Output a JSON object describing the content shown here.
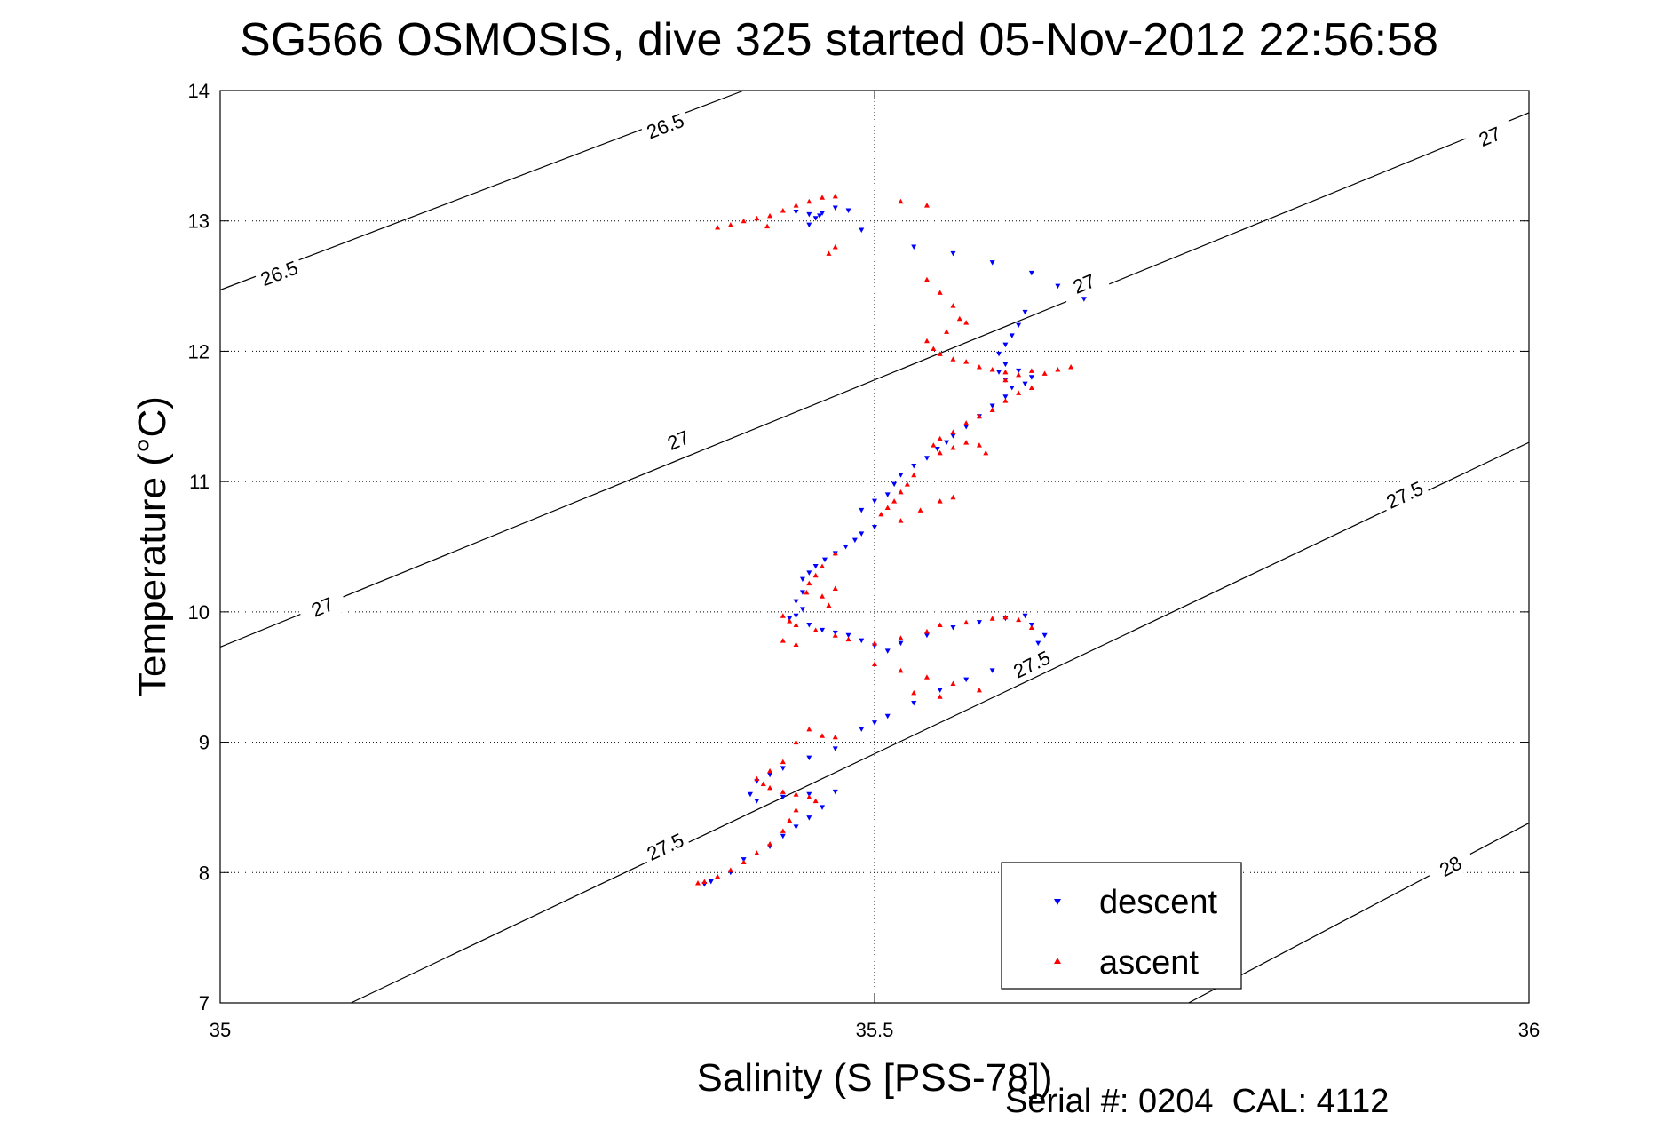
{
  "chart_data": {
    "type": "scatter",
    "title": "SG566 OSMOSIS, dive 325 started 05-Nov-2012 22:56:58",
    "xlabel": "Salinity (S [PSS-78])",
    "ylabel": "Temperature (°C)",
    "xlim": [
      35,
      36
    ],
    "ylim": [
      7,
      14
    ],
    "x_ticks": [
      35,
      35.5,
      36
    ],
    "y_ticks": [
      7,
      8,
      9,
      10,
      11,
      12,
      13,
      14
    ],
    "x_tick_labels": [
      "35",
      "35.5",
      "36"
    ],
    "y_tick_labels": [
      "7",
      "8",
      "9",
      "10",
      "11",
      "12",
      "13",
      "14"
    ],
    "grid": true,
    "legend_position": "bottom-right",
    "footer": "Serial #: 0204  CAL: 4112",
    "contours": [
      {
        "label": "26.5",
        "points": [
          [
            35,
            12.47
          ],
          [
            35.4,
            14.0
          ]
        ],
        "label_at": [
          [
            35.045,
            12.6
          ],
          [
            35.34,
            13.73
          ]
        ]
      },
      {
        "label": "27",
        "points": [
          [
            35,
            9.73
          ],
          [
            36,
            13.83
          ]
        ],
        "label_at": [
          [
            35.078,
            10.04
          ],
          [
            35.35,
            11.32
          ],
          [
            35.66,
            12.52
          ],
          [
            35.97,
            13.65
          ]
        ]
      },
      {
        "label": "27.5",
        "points": [
          [
            35.1,
            7.0
          ],
          [
            36,
            11.3
          ]
        ],
        "label_at": [
          [
            35.34,
            8.2
          ],
          [
            35.62,
            9.6
          ],
          [
            35.905,
            10.9
          ]
        ]
      },
      {
        "label": "28",
        "points": [
          [
            35.74,
            7.0
          ],
          [
            36,
            8.38
          ]
        ],
        "label_at": [
          [
            35.94,
            8.05
          ]
        ]
      }
    ],
    "series": [
      {
        "name": "descent",
        "color": "#0000ff",
        "marker": "triangle-down",
        "points": [
          [
            35.44,
            13.07
          ],
          [
            35.45,
            13.05
          ],
          [
            35.455,
            13.02
          ],
          [
            35.46,
            13.06
          ],
          [
            35.47,
            13.1
          ],
          [
            35.48,
            13.08
          ],
          [
            35.49,
            12.93
          ],
          [
            35.45,
            12.97
          ],
          [
            35.458,
            13.04
          ],
          [
            35.53,
            12.8
          ],
          [
            35.56,
            12.75
          ],
          [
            35.59,
            12.68
          ],
          [
            35.62,
            12.6
          ],
          [
            35.64,
            12.5
          ],
          [
            35.66,
            12.4
          ],
          [
            35.615,
            12.3
          ],
          [
            35.61,
            12.2
          ],
          [
            35.605,
            12.12
          ],
          [
            35.6,
            12.05
          ],
          [
            35.595,
            11.98
          ],
          [
            35.6,
            11.9
          ],
          [
            35.595,
            11.84
          ],
          [
            35.6,
            11.78
          ],
          [
            35.605,
            11.72
          ],
          [
            35.61,
            11.85
          ],
          [
            35.62,
            11.8
          ],
          [
            35.615,
            11.75
          ],
          [
            35.6,
            11.65
          ],
          [
            35.59,
            11.58
          ],
          [
            35.58,
            11.5
          ],
          [
            35.57,
            11.42
          ],
          [
            35.56,
            11.35
          ],
          [
            35.555,
            11.3
          ],
          [
            35.548,
            11.25
          ],
          [
            35.54,
            11.18
          ],
          [
            35.53,
            11.12
          ],
          [
            35.52,
            11.05
          ],
          [
            35.515,
            10.98
          ],
          [
            35.51,
            10.9
          ],
          [
            35.5,
            10.85
          ],
          [
            35.49,
            10.78
          ],
          [
            35.5,
            10.65
          ],
          [
            35.49,
            10.6
          ],
          [
            35.485,
            10.55
          ],
          [
            35.478,
            10.5
          ],
          [
            35.47,
            10.45
          ],
          [
            35.462,
            10.4
          ],
          [
            35.455,
            10.35
          ],
          [
            35.45,
            10.3
          ],
          [
            35.445,
            10.25
          ],
          [
            35.445,
            10.15
          ],
          [
            35.44,
            10.08
          ],
          [
            35.445,
            10.02
          ],
          [
            35.44,
            9.97
          ],
          [
            35.435,
            9.95
          ],
          [
            35.45,
            9.9
          ],
          [
            35.46,
            9.86
          ],
          [
            35.47,
            9.84
          ],
          [
            35.48,
            9.82
          ],
          [
            35.49,
            9.78
          ],
          [
            35.5,
            9.74
          ],
          [
            35.51,
            9.7
          ],
          [
            35.52,
            9.76
          ],
          [
            35.54,
            9.82
          ],
          [
            35.56,
            9.88
          ],
          [
            35.58,
            9.92
          ],
          [
            35.6,
            9.95
          ],
          [
            35.615,
            9.97
          ],
          [
            35.62,
            9.9
          ],
          [
            35.63,
            9.82
          ],
          [
            35.625,
            9.76
          ],
          [
            35.59,
            9.55
          ],
          [
            35.57,
            9.48
          ],
          [
            35.55,
            9.4
          ],
          [
            35.53,
            9.3
          ],
          [
            35.51,
            9.2
          ],
          [
            35.5,
            9.15
          ],
          [
            35.49,
            9.1
          ],
          [
            35.47,
            8.95
          ],
          [
            35.45,
            8.88
          ],
          [
            35.43,
            8.8
          ],
          [
            35.42,
            8.75
          ],
          [
            35.41,
            8.7
          ],
          [
            35.405,
            8.6
          ],
          [
            35.41,
            8.55
          ],
          [
            35.43,
            8.58
          ],
          [
            35.45,
            8.6
          ],
          [
            35.47,
            8.62
          ],
          [
            35.46,
            8.5
          ],
          [
            35.45,
            8.42
          ],
          [
            35.44,
            8.35
          ],
          [
            35.43,
            8.28
          ],
          [
            35.42,
            8.2
          ],
          [
            35.4,
            8.1
          ],
          [
            35.39,
            8.0
          ],
          [
            35.375,
            7.93
          ],
          [
            35.37,
            7.91
          ]
        ]
      },
      {
        "name": "ascent",
        "color": "#ff0000",
        "marker": "triangle-up",
        "points": [
          [
            35.38,
            12.95
          ],
          [
            35.39,
            12.97
          ],
          [
            35.4,
            13.0
          ],
          [
            35.41,
            13.02
          ],
          [
            35.42,
            13.04
          ],
          [
            35.43,
            13.08
          ],
          [
            35.44,
            13.12
          ],
          [
            35.45,
            13.15
          ],
          [
            35.46,
            13.18
          ],
          [
            35.47,
            13.19
          ],
          [
            35.418,
            12.96
          ],
          [
            35.47,
            12.8
          ],
          [
            35.465,
            12.75
          ],
          [
            35.52,
            13.15
          ],
          [
            35.54,
            13.12
          ],
          [
            35.54,
            12.55
          ],
          [
            35.55,
            12.45
          ],
          [
            35.56,
            12.35
          ],
          [
            35.565,
            12.25
          ],
          [
            35.57,
            12.22
          ],
          [
            35.555,
            12.15
          ],
          [
            35.54,
            12.08
          ],
          [
            35.545,
            12.02
          ],
          [
            35.55,
            11.98
          ],
          [
            35.56,
            11.94
          ],
          [
            35.57,
            11.92
          ],
          [
            35.58,
            11.88
          ],
          [
            35.59,
            11.86
          ],
          [
            35.6,
            11.84
          ],
          [
            35.61,
            11.82
          ],
          [
            35.62,
            11.85
          ],
          [
            35.63,
            11.83
          ],
          [
            35.64,
            11.86
          ],
          [
            35.65,
            11.88
          ],
          [
            35.6,
            11.78
          ],
          [
            35.62,
            11.72
          ],
          [
            35.61,
            11.68
          ],
          [
            35.6,
            11.62
          ],
          [
            35.59,
            11.55
          ],
          [
            35.58,
            11.5
          ],
          [
            35.57,
            11.45
          ],
          [
            35.56,
            11.38
          ],
          [
            35.55,
            11.33
          ],
          [
            35.545,
            11.28
          ],
          [
            35.55,
            11.22
          ],
          [
            35.56,
            11.26
          ],
          [
            35.57,
            11.3
          ],
          [
            35.58,
            11.28
          ],
          [
            35.585,
            11.22
          ],
          [
            35.53,
            11.05
          ],
          [
            35.525,
            10.98
          ],
          [
            35.52,
            10.92
          ],
          [
            35.515,
            10.85
          ],
          [
            35.51,
            10.8
          ],
          [
            35.505,
            10.75
          ],
          [
            35.52,
            10.7
          ],
          [
            35.535,
            10.78
          ],
          [
            35.55,
            10.85
          ],
          [
            35.56,
            10.88
          ],
          [
            35.47,
            10.45
          ],
          [
            35.46,
            10.35
          ],
          [
            35.455,
            10.28
          ],
          [
            35.45,
            10.22
          ],
          [
            35.448,
            10.15
          ],
          [
            35.46,
            10.12
          ],
          [
            35.47,
            10.18
          ],
          [
            35.465,
            10.05
          ],
          [
            35.43,
            9.97
          ],
          [
            35.435,
            9.93
          ],
          [
            35.44,
            9.9
          ],
          [
            35.455,
            9.86
          ],
          [
            35.47,
            9.82
          ],
          [
            35.48,
            9.79
          ],
          [
            35.5,
            9.76
          ],
          [
            35.52,
            9.8
          ],
          [
            35.54,
            9.85
          ],
          [
            35.55,
            9.9
          ],
          [
            35.57,
            9.92
          ],
          [
            35.59,
            9.95
          ],
          [
            35.6,
            9.96
          ],
          [
            35.61,
            9.94
          ],
          [
            35.62,
            9.88
          ],
          [
            35.43,
            9.78
          ],
          [
            35.44,
            9.75
          ],
          [
            35.5,
            9.6
          ],
          [
            35.52,
            9.55
          ],
          [
            35.54,
            9.5
          ],
          [
            35.56,
            9.45
          ],
          [
            35.58,
            9.4
          ],
          [
            35.55,
            9.35
          ],
          [
            35.53,
            9.38
          ],
          [
            35.45,
            9.1
          ],
          [
            35.46,
            9.05
          ],
          [
            35.47,
            9.04
          ],
          [
            35.44,
            9.0
          ],
          [
            35.43,
            8.85
          ],
          [
            35.42,
            8.78
          ],
          [
            35.41,
            8.72
          ],
          [
            35.415,
            8.68
          ],
          [
            35.42,
            8.65
          ],
          [
            35.43,
            8.62
          ],
          [
            35.44,
            8.6
          ],
          [
            35.45,
            8.58
          ],
          [
            35.455,
            8.55
          ],
          [
            35.44,
            8.48
          ],
          [
            35.435,
            8.4
          ],
          [
            35.43,
            8.32
          ],
          [
            35.42,
            8.22
          ],
          [
            35.41,
            8.15
          ],
          [
            35.4,
            8.08
          ],
          [
            35.39,
            8.02
          ],
          [
            35.38,
            7.97
          ],
          [
            35.37,
            7.93
          ],
          [
            35.365,
            7.92
          ]
        ]
      }
    ]
  }
}
